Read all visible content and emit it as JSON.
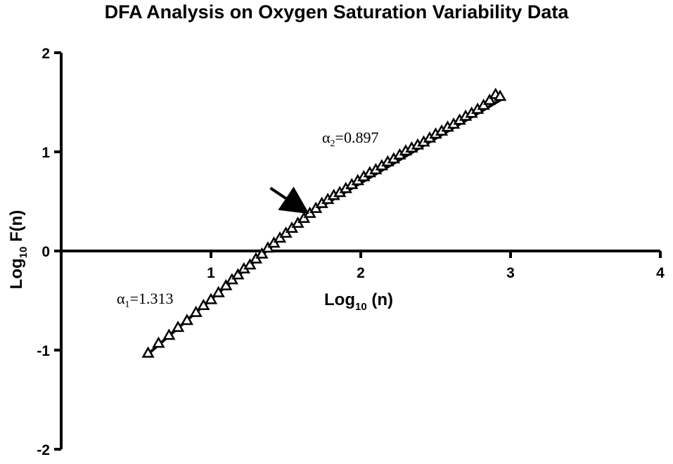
{
  "chart_data": {
    "type": "scatter",
    "title": "DFA Analysis on Oxygen Saturation Variability Data",
    "xlabel": {
      "prefix": "Log",
      "sub": "10",
      "suffix": " (n)"
    },
    "ylabel": {
      "prefix": "Log",
      "sub": "10",
      "suffix": " F(n)"
    },
    "xlim": [
      0,
      4
    ],
    "ylim": [
      -2,
      2
    ],
    "x_ticks": [
      1,
      2,
      3,
      4
    ],
    "x_tick_labels": [
      "1",
      "2",
      "3",
      "4"
    ],
    "y_ticks": [
      -2,
      -1,
      0,
      1,
      2
    ],
    "y_tick_labels": [
      "-2",
      "-1",
      "0",
      "1",
      "2"
    ],
    "grid": false,
    "legend": "none",
    "marker": "open-triangle",
    "color": "#000000",
    "series": [
      {
        "points": [
          [
            0.58,
            -1.03
          ],
          [
            0.65,
            -0.93
          ],
          [
            0.72,
            -0.85
          ],
          [
            0.78,
            -0.77
          ],
          [
            0.84,
            -0.7
          ],
          [
            0.9,
            -0.62
          ],
          [
            0.95,
            -0.55
          ],
          [
            1.0,
            -0.49
          ],
          [
            1.05,
            -0.42
          ],
          [
            1.1,
            -0.35
          ],
          [
            1.14,
            -0.29
          ],
          [
            1.18,
            -0.24
          ],
          [
            1.22,
            -0.18
          ],
          [
            1.26,
            -0.14
          ],
          [
            1.3,
            -0.08
          ],
          [
            1.34,
            -0.03
          ],
          [
            1.38,
            0.03
          ],
          [
            1.42,
            0.08
          ],
          [
            1.46,
            0.13
          ],
          [
            1.5,
            0.18
          ],
          [
            1.54,
            0.23
          ],
          [
            1.58,
            0.28
          ],
          [
            1.62,
            0.33
          ],
          [
            1.66,
            0.38
          ],
          [
            1.7,
            0.43
          ],
          [
            1.74,
            0.48
          ],
          [
            1.78,
            0.52
          ],
          [
            1.82,
            0.56
          ],
          [
            1.86,
            0.59
          ],
          [
            1.9,
            0.63
          ],
          [
            1.94,
            0.67
          ],
          [
            1.98,
            0.71
          ],
          [
            2.02,
            0.75
          ],
          [
            2.06,
            0.79
          ],
          [
            2.1,
            0.82
          ],
          [
            2.14,
            0.86
          ],
          [
            2.18,
            0.9
          ],
          [
            2.22,
            0.93
          ],
          [
            2.26,
            0.97
          ],
          [
            2.3,
            1.01
          ],
          [
            2.34,
            1.04
          ],
          [
            2.38,
            1.07
          ],
          [
            2.42,
            1.1
          ],
          [
            2.46,
            1.14
          ],
          [
            2.5,
            1.18
          ],
          [
            2.54,
            1.21
          ],
          [
            2.58,
            1.25
          ],
          [
            2.62,
            1.28
          ],
          [
            2.66,
            1.32
          ],
          [
            2.7,
            1.36
          ],
          [
            2.74,
            1.39
          ],
          [
            2.78,
            1.43
          ],
          [
            2.82,
            1.47
          ],
          [
            2.86,
            1.52
          ],
          [
            2.9,
            1.58
          ],
          [
            2.93,
            1.56
          ]
        ]
      }
    ],
    "fit_lines": [
      {
        "alpha_symbol": "α",
        "alpha_sub": "1",
        "alpha_value": "=1.313",
        "x": [
          0.58,
          1.66
        ],
        "y": [
          -1.04,
          0.38
        ]
      },
      {
        "alpha_symbol": "α",
        "alpha_sub": "2",
        "alpha_value": "=0.897",
        "x": [
          1.66,
          2.95
        ],
        "y": [
          0.38,
          1.54
        ]
      }
    ],
    "crossover_arrow": {
      "x": 1.65,
      "y": 0.38
    }
  }
}
